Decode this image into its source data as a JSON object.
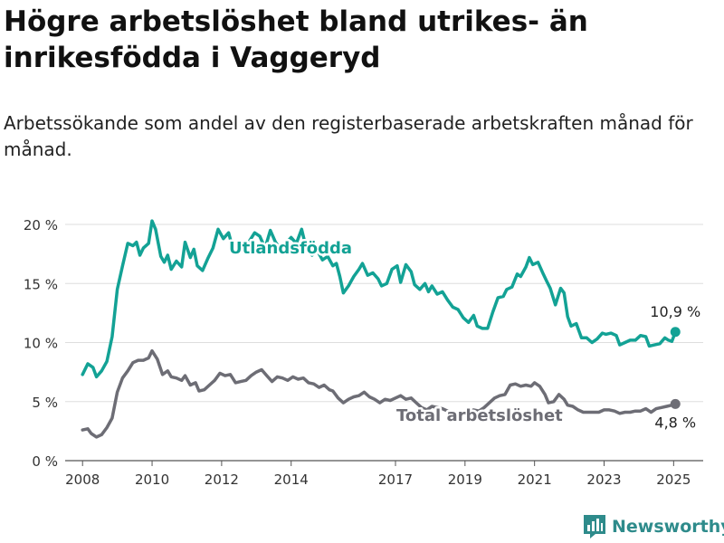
{
  "header": {
    "title": "Högre arbetslöshet bland utrikes- än inrikesfödda i Vaggeryd",
    "subtitle": "Arbetssökande som andel av den registerbaserade arbetskraften månad för månad."
  },
  "brand": {
    "name": "Newsworthy",
    "icon": "bar-chart-logo-icon",
    "color": "#2e8b8b"
  },
  "chart_data": {
    "type": "line",
    "ylim": [
      0,
      21
    ],
    "xlim": [
      2007.5,
      2025.85
    ],
    "y_ticks": [
      0,
      5,
      10,
      15,
      20
    ],
    "y_tick_labels": [
      "0 %",
      "5 %",
      "10 %",
      "15 %",
      "20 %"
    ],
    "x_ticks": [
      2008,
      2010,
      2012,
      2014,
      2017,
      2019,
      2021,
      2023,
      2025
    ],
    "x_tick_labels": [
      "2008",
      "2010",
      "2012",
      "2014",
      "2017",
      "2019",
      "2021",
      "2023",
      "2025"
    ],
    "grid": "horizontal",
    "series": [
      {
        "name": "Utlandsfödda",
        "color": "#13a295",
        "end_label": "10,9 %",
        "points": [
          [
            2008.0,
            7.3
          ],
          [
            2008.15,
            8.2
          ],
          [
            2008.3,
            7.9
          ],
          [
            2008.4,
            7.1
          ],
          [
            2008.55,
            7.6
          ],
          [
            2008.7,
            8.4
          ],
          [
            2008.85,
            10.5
          ],
          [
            2009.0,
            14.5
          ],
          [
            2009.15,
            16.5
          ],
          [
            2009.3,
            18.4
          ],
          [
            2009.45,
            18.2
          ],
          [
            2009.55,
            18.5
          ],
          [
            2009.65,
            17.4
          ],
          [
            2009.75,
            18.0
          ],
          [
            2009.9,
            18.4
          ],
          [
            2010.0,
            20.3
          ],
          [
            2010.1,
            19.6
          ],
          [
            2010.25,
            17.3
          ],
          [
            2010.35,
            16.8
          ],
          [
            2010.45,
            17.4
          ],
          [
            2010.55,
            16.2
          ],
          [
            2010.7,
            16.9
          ],
          [
            2010.85,
            16.4
          ],
          [
            2010.95,
            18.5
          ],
          [
            2011.1,
            17.2
          ],
          [
            2011.2,
            17.9
          ],
          [
            2011.3,
            16.5
          ],
          [
            2011.45,
            16.1
          ],
          [
            2011.6,
            17.1
          ],
          [
            2011.75,
            18.0
          ],
          [
            2011.9,
            19.6
          ],
          [
            2012.05,
            18.8
          ],
          [
            2012.2,
            19.3
          ],
          [
            2012.35,
            17.7
          ],
          [
            2012.5,
            18.0
          ],
          [
            2012.65,
            17.8
          ],
          [
            2012.8,
            18.6
          ],
          [
            2012.95,
            19.3
          ],
          [
            2013.1,
            19.0
          ],
          [
            2013.25,
            18.0
          ],
          [
            2013.4,
            19.5
          ],
          [
            2013.55,
            18.5
          ],
          [
            2013.7,
            17.9
          ],
          [
            2013.85,
            18.4
          ],
          [
            2014.0,
            18.9
          ],
          [
            2014.15,
            18.4
          ],
          [
            2014.3,
            19.6
          ],
          [
            2014.45,
            17.8
          ],
          [
            2014.6,
            17.4
          ],
          [
            2014.75,
            17.8
          ],
          [
            2014.9,
            17.0
          ],
          [
            2015.05,
            17.3
          ],
          [
            2015.2,
            16.5
          ],
          [
            2015.3,
            16.7
          ],
          [
            2015.4,
            15.6
          ],
          [
            2015.5,
            14.2
          ],
          [
            2015.65,
            14.8
          ],
          [
            2015.8,
            15.6
          ],
          [
            2015.95,
            16.2
          ],
          [
            2016.05,
            16.7
          ],
          [
            2016.2,
            15.7
          ],
          [
            2016.35,
            15.9
          ],
          [
            2016.5,
            15.4
          ],
          [
            2016.6,
            14.8
          ],
          [
            2016.75,
            15.0
          ],
          [
            2016.9,
            16.2
          ],
          [
            2017.05,
            16.5
          ],
          [
            2017.15,
            15.1
          ],
          [
            2017.3,
            16.6
          ],
          [
            2017.45,
            16.0
          ],
          [
            2017.55,
            14.9
          ],
          [
            2017.7,
            14.5
          ],
          [
            2017.85,
            15.0
          ],
          [
            2017.95,
            14.3
          ],
          [
            2018.05,
            14.8
          ],
          [
            2018.2,
            14.1
          ],
          [
            2018.35,
            14.3
          ],
          [
            2018.5,
            13.6
          ],
          [
            2018.65,
            13.0
          ],
          [
            2018.8,
            12.8
          ],
          [
            2018.95,
            12.1
          ],
          [
            2019.1,
            11.7
          ],
          [
            2019.25,
            12.3
          ],
          [
            2019.35,
            11.4
          ],
          [
            2019.5,
            11.2
          ],
          [
            2019.65,
            11.2
          ],
          [
            2019.8,
            12.6
          ],
          [
            2019.95,
            13.8
          ],
          [
            2020.1,
            13.9
          ],
          [
            2020.2,
            14.5
          ],
          [
            2020.35,
            14.7
          ],
          [
            2020.5,
            15.8
          ],
          [
            2020.6,
            15.6
          ],
          [
            2020.75,
            16.4
          ],
          [
            2020.85,
            17.2
          ],
          [
            2020.95,
            16.6
          ],
          [
            2021.1,
            16.8
          ],
          [
            2021.25,
            15.8
          ],
          [
            2021.35,
            15.2
          ],
          [
            2021.45,
            14.6
          ],
          [
            2021.6,
            13.2
          ],
          [
            2021.75,
            14.6
          ],
          [
            2021.85,
            14.2
          ],
          [
            2021.95,
            12.2
          ],
          [
            2022.05,
            11.4
          ],
          [
            2022.2,
            11.6
          ],
          [
            2022.35,
            10.4
          ],
          [
            2022.5,
            10.4
          ],
          [
            2022.65,
            10.0
          ],
          [
            2022.8,
            10.3
          ],
          [
            2022.95,
            10.8
          ],
          [
            2023.05,
            10.7
          ],
          [
            2023.2,
            10.8
          ],
          [
            2023.35,
            10.6
          ],
          [
            2023.45,
            9.8
          ],
          [
            2023.6,
            10.0
          ],
          [
            2023.75,
            10.2
          ],
          [
            2023.9,
            10.2
          ],
          [
            2024.05,
            10.6
          ],
          [
            2024.2,
            10.5
          ],
          [
            2024.3,
            9.7
          ],
          [
            2024.45,
            9.8
          ],
          [
            2024.6,
            9.9
          ],
          [
            2024.75,
            10.4
          ],
          [
            2024.85,
            10.2
          ],
          [
            2024.95,
            10.1
          ],
          [
            2025.05,
            10.9
          ]
        ]
      },
      {
        "name": "Total arbetslöshet",
        "color": "#6d6d75",
        "end_label": "4,8 %",
        "points": [
          [
            2008.0,
            2.6
          ],
          [
            2008.15,
            2.7
          ],
          [
            2008.25,
            2.3
          ],
          [
            2008.4,
            2.0
          ],
          [
            2008.55,
            2.2
          ],
          [
            2008.7,
            2.8
          ],
          [
            2008.85,
            3.6
          ],
          [
            2009.0,
            5.8
          ],
          [
            2009.15,
            7.0
          ],
          [
            2009.3,
            7.6
          ],
          [
            2009.45,
            8.3
          ],
          [
            2009.6,
            8.5
          ],
          [
            2009.75,
            8.5
          ],
          [
            2009.9,
            8.7
          ],
          [
            2010.0,
            9.3
          ],
          [
            2010.15,
            8.6
          ],
          [
            2010.3,
            7.3
          ],
          [
            2010.45,
            7.6
          ],
          [
            2010.55,
            7.1
          ],
          [
            2010.7,
            7.0
          ],
          [
            2010.85,
            6.8
          ],
          [
            2010.95,
            7.2
          ],
          [
            2011.1,
            6.4
          ],
          [
            2011.25,
            6.6
          ],
          [
            2011.35,
            5.9
          ],
          [
            2011.5,
            6.0
          ],
          [
            2011.65,
            6.4
          ],
          [
            2011.8,
            6.8
          ],
          [
            2011.95,
            7.4
          ],
          [
            2012.1,
            7.2
          ],
          [
            2012.25,
            7.3
          ],
          [
            2012.4,
            6.6
          ],
          [
            2012.55,
            6.7
          ],
          [
            2012.7,
            6.8
          ],
          [
            2012.85,
            7.2
          ],
          [
            2013.0,
            7.5
          ],
          [
            2013.15,
            7.7
          ],
          [
            2013.3,
            7.2
          ],
          [
            2013.45,
            6.7
          ],
          [
            2013.6,
            7.1
          ],
          [
            2013.75,
            7.0
          ],
          [
            2013.9,
            6.8
          ],
          [
            2014.05,
            7.1
          ],
          [
            2014.2,
            6.9
          ],
          [
            2014.35,
            7.0
          ],
          [
            2014.5,
            6.6
          ],
          [
            2014.65,
            6.5
          ],
          [
            2014.8,
            6.2
          ],
          [
            2014.95,
            6.4
          ],
          [
            2015.1,
            6.0
          ],
          [
            2015.2,
            5.9
          ],
          [
            2015.35,
            5.3
          ],
          [
            2015.5,
            4.9
          ],
          [
            2015.65,
            5.2
          ],
          [
            2015.8,
            5.4
          ],
          [
            2015.95,
            5.5
          ],
          [
            2016.1,
            5.8
          ],
          [
            2016.25,
            5.4
          ],
          [
            2016.4,
            5.2
          ],
          [
            2016.55,
            4.9
          ],
          [
            2016.7,
            5.2
          ],
          [
            2016.85,
            5.1
          ],
          [
            2017.0,
            5.3
          ],
          [
            2017.15,
            5.5
          ],
          [
            2017.3,
            5.2
          ],
          [
            2017.45,
            5.3
          ],
          [
            2017.6,
            4.9
          ],
          [
            2017.75,
            4.5
          ],
          [
            2017.9,
            4.3
          ],
          [
            2018.05,
            4.6
          ],
          [
            2018.2,
            4.5
          ],
          [
            2018.35,
            4.4
          ],
          [
            2018.5,
            4.2
          ],
          [
            2018.65,
            4.0
          ],
          [
            2018.8,
            4.1
          ],
          [
            2018.95,
            4.0
          ],
          [
            2019.1,
            4.1
          ],
          [
            2019.25,
            4.3
          ],
          [
            2019.4,
            4.2
          ],
          [
            2019.55,
            4.5
          ],
          [
            2019.7,
            4.9
          ],
          [
            2019.85,
            5.3
          ],
          [
            2020.0,
            5.5
          ],
          [
            2020.15,
            5.6
          ],
          [
            2020.3,
            6.4
          ],
          [
            2020.45,
            6.5
          ],
          [
            2020.6,
            6.3
          ],
          [
            2020.75,
            6.4
          ],
          [
            2020.9,
            6.3
          ],
          [
            2021.0,
            6.6
          ],
          [
            2021.15,
            6.3
          ],
          [
            2021.3,
            5.6
          ],
          [
            2021.4,
            4.9
          ],
          [
            2021.55,
            5.0
          ],
          [
            2021.7,
            5.6
          ],
          [
            2021.85,
            5.2
          ],
          [
            2021.95,
            4.7
          ],
          [
            2022.1,
            4.6
          ],
          [
            2022.25,
            4.3
          ],
          [
            2022.4,
            4.1
          ],
          [
            2022.55,
            4.1
          ],
          [
            2022.7,
            4.1
          ],
          [
            2022.85,
            4.1
          ],
          [
            2023.0,
            4.3
          ],
          [
            2023.15,
            4.3
          ],
          [
            2023.3,
            4.2
          ],
          [
            2023.45,
            4.0
          ],
          [
            2023.6,
            4.1
          ],
          [
            2023.75,
            4.1
          ],
          [
            2023.9,
            4.2
          ],
          [
            2024.05,
            4.2
          ],
          [
            2024.2,
            4.4
          ],
          [
            2024.35,
            4.1
          ],
          [
            2024.5,
            4.4
          ],
          [
            2024.65,
            4.5
          ],
          [
            2024.8,
            4.6
          ],
          [
            2024.95,
            4.7
          ],
          [
            2025.05,
            4.8
          ]
        ]
      }
    ]
  }
}
